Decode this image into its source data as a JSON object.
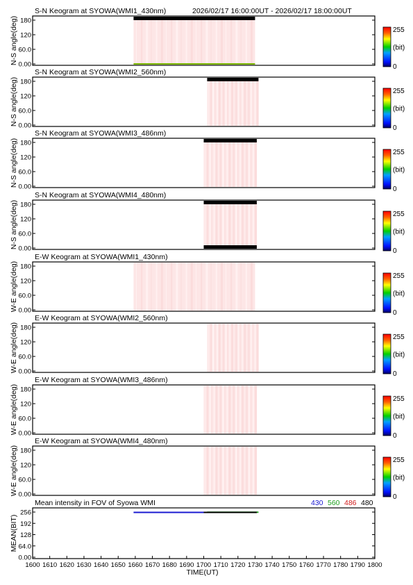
{
  "header": {
    "time_range": "2026/02/17 16:00:00UT - 2026/02/17 18:00:00UT"
  },
  "colorbar": {
    "max_label": "255",
    "min_label": "0",
    "unit_label": "(bit)"
  },
  "chart_data": [
    {
      "type": "heatmap",
      "title": "S-N Keogram at SYOWA(WMI1_430nm)",
      "ylabel": "N-S angle(deg)",
      "xlim": [
        1600,
        1800
      ],
      "ylim": [
        0,
        180
      ],
      "yticks": [
        "0.00",
        "60.0",
        "120",
        "180"
      ],
      "data_start": 1659,
      "data_end": 1730,
      "top_band": "black",
      "bottom_band": "green"
    },
    {
      "type": "heatmap",
      "title": "S-N Keogram at SYOWA(WMI2_560nm)",
      "ylabel": "N-S angle(deg)",
      "xlim": [
        1600,
        1800
      ],
      "ylim": [
        0,
        180
      ],
      "yticks": [
        "0.00",
        "60.0",
        "120",
        "180"
      ],
      "data_start": 1702,
      "data_end": 1732,
      "top_band": "black",
      "bottom_band": "none"
    },
    {
      "type": "heatmap",
      "title": "S-N Keogram at SYOWA(WMI3_486nm)",
      "ylabel": "N-S angle(deg)",
      "xlim": [
        1600,
        1800
      ],
      "ylim": [
        0,
        180
      ],
      "yticks": [
        "0.00",
        "60.0",
        "120",
        "180"
      ],
      "data_start": 1700,
      "data_end": 1731,
      "top_band": "black",
      "bottom_band": "none"
    },
    {
      "type": "heatmap",
      "title": "S-N Keogram at SYOWA(WMI4_480nm)",
      "ylabel": "N-S angle(deg)",
      "xlim": [
        1600,
        1800
      ],
      "ylim": [
        0,
        180
      ],
      "yticks": [
        "0.00",
        "60.0",
        "120",
        "180"
      ],
      "data_start": 1700,
      "data_end": 1731,
      "top_band": "black",
      "bottom_band": "black"
    },
    {
      "type": "heatmap",
      "title": "E-W Keogram at SYOWA(WMI1_430nm)",
      "ylabel": "W-E angle(deg)",
      "xlim": [
        1600,
        1800
      ],
      "ylim": [
        0,
        180
      ],
      "yticks": [
        "0.00",
        "60.0",
        "120",
        "180"
      ],
      "data_start": 1659,
      "data_end": 1730,
      "top_band": "none",
      "bottom_band": "none"
    },
    {
      "type": "heatmap",
      "title": "E-W Keogram at SYOWA(WMI2_560nm)",
      "ylabel": "W-E angle(deg)",
      "xlim": [
        1600,
        1800
      ],
      "ylim": [
        0,
        180
      ],
      "yticks": [
        "0.00",
        "60.0",
        "120",
        "180"
      ],
      "data_start": 1702,
      "data_end": 1732,
      "top_band": "none",
      "bottom_band": "none"
    },
    {
      "type": "heatmap",
      "title": "E-W Keogram at SYOWA(WMI3_486nm)",
      "ylabel": "W-E angle(deg)",
      "xlim": [
        1600,
        1800
      ],
      "ylim": [
        0,
        180
      ],
      "yticks": [
        "0.00",
        "60.0",
        "120",
        "180"
      ],
      "data_start": 1700,
      "data_end": 1731,
      "top_band": "none",
      "bottom_band": "none"
    },
    {
      "type": "heatmap",
      "title": "E-W Keogram at SYOWA(WMI4_480nm)",
      "ylabel": "W-E angle(deg)",
      "xlim": [
        1600,
        1800
      ],
      "ylim": [
        0,
        180
      ],
      "yticks": [
        "0.00",
        "60.0",
        "120",
        "180"
      ],
      "data_start": 1700,
      "data_end": 1731,
      "top_band": "none",
      "bottom_band": "none"
    },
    {
      "type": "line",
      "title": "Mean intensity in FOV of Syowa WMI",
      "ylabel": "MEAN(BIT)",
      "xlabel": "TIME(UT)",
      "xlim": [
        1600,
        1800
      ],
      "ylim": [
        0,
        256
      ],
      "yticks": [
        "0.00",
        "64.0",
        "128",
        "192",
        "256"
      ],
      "xticks": [
        "1600",
        "1610",
        "1620",
        "1630",
        "1640",
        "1650",
        "1660",
        "1670",
        "1680",
        "1690",
        "1700",
        "1710",
        "1720",
        "1730",
        "1740",
        "1750",
        "1760",
        "1770",
        "1780",
        "1790",
        "1800"
      ],
      "legend": [
        {
          "label": "430",
          "color": "#1a1ad0"
        },
        {
          "label": "560",
          "color": "#1ea01e"
        },
        {
          "label": "486",
          "color": "#d01a1a"
        },
        {
          "label": "480",
          "color": "#000000"
        }
      ],
      "series": [
        {
          "name": "430",
          "x": [
            1659,
            1730
          ],
          "y": [
            254,
            254
          ]
        },
        {
          "name": "560",
          "x": [
            1702,
            1732
          ],
          "y": [
            255,
            255
          ]
        },
        {
          "name": "486",
          "x": [
            1700,
            1731
          ],
          "y": [
            254,
            254
          ]
        },
        {
          "name": "480",
          "x": [
            1700,
            1731
          ],
          "y": [
            254,
            254
          ]
        }
      ]
    }
  ]
}
